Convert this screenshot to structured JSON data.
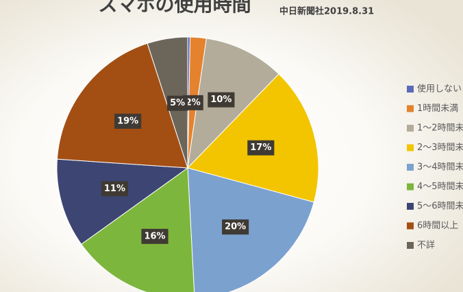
{
  "chart_data": {
    "type": "pie",
    "title": "スマホの使用時間",
    "subtitle": "中日新聞社2019.8.31",
    "categories": [
      "使用しない",
      "1時間未満",
      "1～2時間未",
      "2～3時間未",
      "3～4時間未",
      "4～5時間未",
      "5～6時間未",
      "6時間以上",
      "不詳"
    ],
    "values": [
      0.3,
      2,
      10,
      17,
      20,
      16,
      11,
      19,
      5
    ],
    "value_labels": [
      null,
      "2%",
      "10%",
      "17%",
      "20%",
      "16%",
      "11%",
      "19%",
      "5%"
    ],
    "colors": [
      "#5b6bb8",
      "#e4822e",
      "#b3ac9a",
      "#f2c500",
      "#7ba1cf",
      "#7db63c",
      "#3d4573",
      "#a34f14",
      "#6c655a"
    ],
    "legend": "right"
  }
}
